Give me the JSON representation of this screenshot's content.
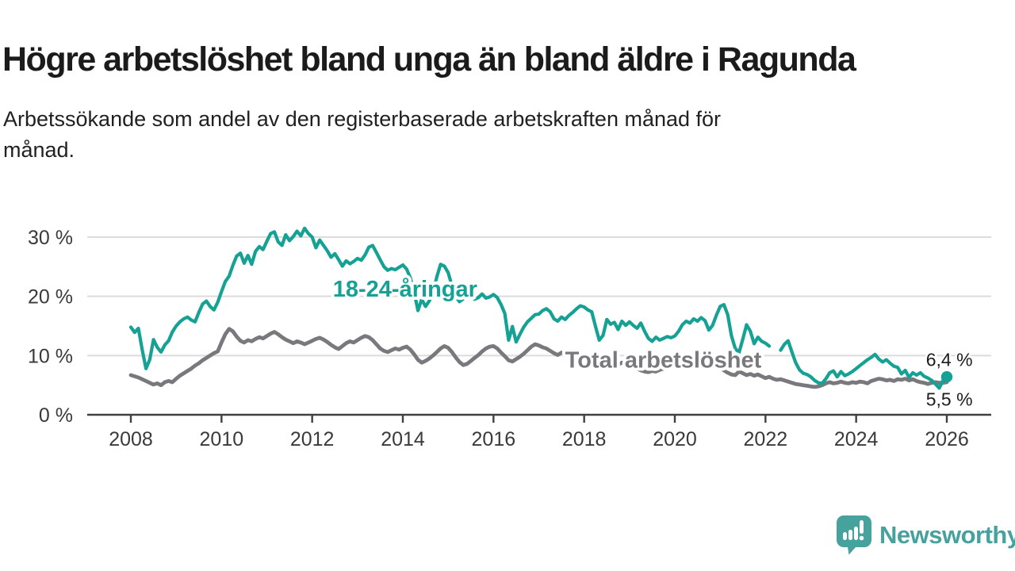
{
  "header": {
    "title": "Högre arbetslöshet bland unga än bland äldre i Ragunda",
    "subtitle_lines": [
      "Arbetssökande som andel av den registerbaserade arbetskraften månad för",
      "månad."
    ]
  },
  "branding": {
    "name": "Newsworthy",
    "color": "#46a29d",
    "logo_icon": "speech-bubble-bar-chart-exclamation"
  },
  "chart_data": {
    "type": "line",
    "title": "Högre arbetslöshet bland unga än bland äldre i Ragunda",
    "subtitle": "Arbetssökande som andel av den registerbaserade arbetskraften månad för månad.",
    "x_base": 2008,
    "xlim": [
      2007.05,
      2026.95
    ],
    "ylim": [
      0,
      32
    ],
    "grid": "horizontal",
    "legend_position": "inline-labels",
    "y_ticks": [
      {
        "value": 0,
        "label": "0 %"
      },
      {
        "value": 10,
        "label": "10 %"
      },
      {
        "value": 20,
        "label": "20 %"
      },
      {
        "value": 30,
        "label": "30 %"
      }
    ],
    "x_ticks": [
      {
        "year": 2008,
        "label": "2008"
      },
      {
        "year": 2010,
        "label": "2010"
      },
      {
        "year": 2012,
        "label": "2012"
      },
      {
        "year": 2014,
        "label": "2014"
      },
      {
        "year": 2016,
        "label": "2016"
      },
      {
        "year": 2018,
        "label": "2018"
      },
      {
        "year": 2020,
        "label": "2020"
      },
      {
        "year": 2022,
        "label": "2022"
      },
      {
        "year": 2024,
        "label": "2024"
      },
      {
        "year": 2026,
        "label": "2026"
      }
    ],
    "series": [
      {
        "name": "18-24-åringar",
        "color": "#15a294",
        "stroke_width": 4.2,
        "end_marker": true,
        "start_year": 2008,
        "step_months": 1,
        "values": [
          14.8,
          13.9,
          14.6,
          11.0,
          7.8,
          9.3,
          12.7,
          11.4,
          10.6,
          11.8,
          12.5,
          14.0,
          15.0,
          15.7,
          16.2,
          16.5,
          16.0,
          15.7,
          17.3,
          18.7,
          19.2,
          18.3,
          17.7,
          19.0,
          20.8,
          22.5,
          23.4,
          25.2,
          26.8,
          27.3,
          25.6,
          26.9,
          25.4,
          27.6,
          28.4,
          27.9,
          29.3,
          30.6,
          30.9,
          29.2,
          28.6,
          30.4,
          29.4,
          30.1,
          31.0,
          30.2,
          31.5,
          30.6,
          30.0,
          28.2,
          29.5,
          28.6,
          27.7,
          26.6,
          27.2,
          26.2,
          25.1,
          26.0,
          25.5,
          25.9,
          26.4,
          26.1,
          27.0,
          28.3,
          28.6,
          27.4,
          26.2,
          25.0,
          24.4,
          24.7,
          24.5,
          24.9,
          25.3,
          24.6,
          23.1,
          20.7,
          17.6,
          19.5,
          18.3,
          19.2,
          20.6,
          23.3,
          25.4,
          25.1,
          24.0,
          21.8,
          19.9,
          19.1,
          19.6,
          20.9,
          20.3,
          19.5,
          19.8,
          20.4,
          19.7,
          19.9,
          20.3,
          19.8,
          18.6,
          17.1,
          12.6,
          14.9,
          12.3,
          13.6,
          14.8,
          15.7,
          16.3,
          16.9,
          17.0,
          17.6,
          17.9,
          17.4,
          16.2,
          15.8,
          16.5,
          16.1,
          16.8,
          17.3,
          17.9,
          18.4,
          18.2,
          17.7,
          17.4,
          14.9,
          12.6,
          13.4,
          16.1,
          15.3,
          15.6,
          14.4,
          15.8,
          15.1,
          15.7,
          15.1,
          14.6,
          15.5,
          14.1,
          12.9,
          12.4,
          13.1,
          12.6,
          12.9,
          13.2,
          13.0,
          13.3,
          14.1,
          15.2,
          15.8,
          15.5,
          16.2,
          15.8,
          16.4,
          15.9,
          14.3,
          15.1,
          16.8,
          18.3,
          18.6,
          16.9,
          13.3,
          11.2,
          10.5,
          12.8,
          15.2,
          14.1,
          12.0,
          13.1,
          12.4,
          12.1,
          11.6,
          null,
          null,
          10.9,
          11.9,
          12.5,
          10.6,
          8.8,
          7.6,
          7.0,
          6.8,
          6.4,
          5.8,
          5.4,
          5.3,
          6.1,
          7.1,
          7.4,
          6.4,
          7.3,
          6.6,
          6.9,
          7.3,
          7.8,
          8.3,
          8.8,
          9.3,
          9.7,
          10.2,
          9.4,
          8.9,
          9.3,
          8.7,
          8.2,
          8.0,
          6.9,
          7.5,
          6.3,
          7.1,
          6.7,
          7.1,
          6.5,
          6.2,
          5.8,
          5.2,
          4.5,
          5.8,
          6.4
        ]
      },
      {
        "name": "Total arbetslöshet",
        "color": "#7a787c",
        "stroke_width": 4.8,
        "end_marker": false,
        "start_year": 2008,
        "step_months": 1,
        "values": [
          6.7,
          6.5,
          6.3,
          6.0,
          5.7,
          5.4,
          5.1,
          5.3,
          5.0,
          5.5,
          5.7,
          5.5,
          6.1,
          6.6,
          7.0,
          7.4,
          7.8,
          8.3,
          8.7,
          9.2,
          9.6,
          10.0,
          10.4,
          10.7,
          12.2,
          13.6,
          14.5,
          14.1,
          13.2,
          12.5,
          12.2,
          12.6,
          12.4,
          12.8,
          13.1,
          12.9,
          13.3,
          13.7,
          14.0,
          13.6,
          13.1,
          12.7,
          12.4,
          12.1,
          12.4,
          12.2,
          11.9,
          12.2,
          12.5,
          12.8,
          13.0,
          12.7,
          12.3,
          11.8,
          11.4,
          11.1,
          11.6,
          12.1,
          12.4,
          12.2,
          12.6,
          13.0,
          13.3,
          13.1,
          12.6,
          11.9,
          11.2,
          10.8,
          10.6,
          10.9,
          11.2,
          11.0,
          11.3,
          11.5,
          11.0,
          10.2,
          9.3,
          8.8,
          9.1,
          9.5,
          10.0,
          10.6,
          11.2,
          11.6,
          11.3,
          10.6,
          9.7,
          8.9,
          8.4,
          8.6,
          9.1,
          9.6,
          10.1,
          10.7,
          11.2,
          11.5,
          11.6,
          11.2,
          10.5,
          9.9,
          9.2,
          9.0,
          9.4,
          9.8,
          10.3,
          10.9,
          11.5,
          11.9,
          11.7,
          11.4,
          11.2,
          10.8,
          10.4,
          10.1,
          10.5,
          10.2,
          9.9,
          9.7,
          9.9,
          9.6,
          9.8,
          9.5,
          9.2,
          8.8,
          8.5,
          8.3,
          8.6,
          8.4,
          8.7,
          8.5,
          8.8,
          8.6,
          8.4,
          8.1,
          7.8,
          7.5,
          7.3,
          7.2,
          7.4,
          7.3,
          7.6,
          7.8,
          8.0,
          8.2,
          8.5,
          8.8,
          9.2,
          9.5,
          9.6,
          9.4,
          9.2,
          9.1,
          8.9,
          8.7,
          8.5,
          8.2,
          7.9,
          7.5,
          7.1,
          6.8,
          6.7,
          7.3,
          7.0,
          6.7,
          6.9,
          6.6,
          6.8,
          6.5,
          6.2,
          6.4,
          6.1,
          5.9,
          6.0,
          5.8,
          5.6,
          5.4,
          5.2,
          5.1,
          5.0,
          4.9,
          4.8,
          4.7,
          4.8,
          5.0,
          5.3,
          5.5,
          5.3,
          5.4,
          5.6,
          5.4,
          5.3,
          5.5,
          5.4,
          5.6,
          5.5,
          5.3,
          5.7,
          5.9,
          6.1,
          6.0,
          5.8,
          5.9,
          5.7,
          6.0,
          5.9,
          6.1,
          5.8,
          6.0,
          5.7,
          5.5,
          5.4,
          5.2,
          5.4,
          5.5,
          5.4,
          5.4,
          5.5
        ]
      }
    ],
    "annotations": [
      {
        "id": "series-label-youth",
        "text": "18-24-åringar",
        "x": 2014.05,
        "y": 21.3,
        "anchor": "middle",
        "color": "#15a294",
        "bold": true,
        "size": 29,
        "halo": 8
      },
      {
        "id": "series-label-total",
        "text": "Total arbetslöshet",
        "x": 2017.58,
        "y": 9.3,
        "anchor": "start",
        "color": "#7a787c",
        "bold": true,
        "size": 29,
        "halo": 8
      },
      {
        "id": "end-label-youth",
        "text": "6,4 %",
        "x": 2025.54,
        "y": 9.3,
        "anchor": "start",
        "color": "#1c1c1c",
        "bold": false,
        "size": 23,
        "halo": 5
      },
      {
        "id": "end-label-total",
        "text": "5,5 %",
        "x": 2025.54,
        "y": 2.6,
        "anchor": "start",
        "color": "#1c1c1c",
        "bold": false,
        "size": 23,
        "halo": 5
      }
    ],
    "end_dot": {
      "series": "18-24-åringar",
      "x": 2026.0,
      "y": 6.4,
      "radius": 7.2
    },
    "axis_color": "#404040",
    "gridline_color": "#dcdcdc",
    "tick_label_color": "#3a3a3a"
  }
}
